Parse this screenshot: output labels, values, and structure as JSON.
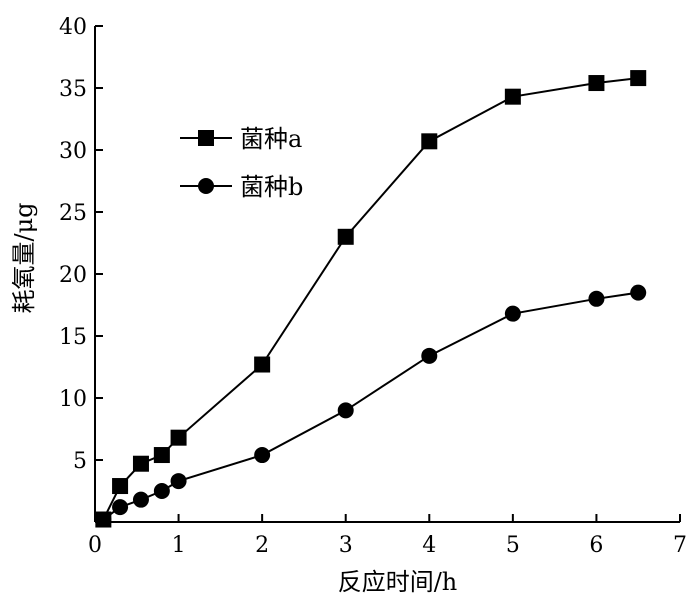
{
  "chart_data": {
    "type": "line",
    "xlabel": "反应时间/h",
    "ylabel": "耗氧量/μg",
    "xlim": [
      0,
      7
    ],
    "ylim": [
      0,
      40
    ],
    "xticks": [
      0,
      1,
      2,
      3,
      4,
      5,
      6,
      7
    ],
    "yticks": [
      5,
      10,
      15,
      20,
      25,
      30,
      35,
      40
    ],
    "xtick_labels": [
      "0",
      "1",
      "2",
      "3",
      "4",
      "5",
      "6",
      "7"
    ],
    "ytick_labels": [
      "5",
      "10",
      "15",
      "20",
      "25",
      "30",
      "35",
      "40"
    ],
    "grid": false,
    "legend_position": "upper-left",
    "series": [
      {
        "name": "菌种a",
        "marker": "square",
        "x": [
          0.1,
          0.3,
          0.55,
          0.8,
          1.0,
          2.0,
          3.0,
          4.0,
          5.0,
          6.0,
          6.5
        ],
        "y": [
          0.2,
          2.9,
          4.7,
          5.4,
          6.8,
          12.7,
          23.0,
          30.7,
          34.3,
          35.4,
          35.8
        ]
      },
      {
        "name": "菌种b",
        "marker": "circle",
        "x": [
          0.1,
          0.3,
          0.55,
          0.8,
          1.0,
          2.0,
          3.0,
          4.0,
          5.0,
          6.0,
          6.5
        ],
        "y": [
          0.2,
          1.2,
          1.8,
          2.5,
          3.3,
          5.4,
          9.0,
          13.4,
          16.8,
          18.0,
          18.5
        ]
      }
    ]
  }
}
